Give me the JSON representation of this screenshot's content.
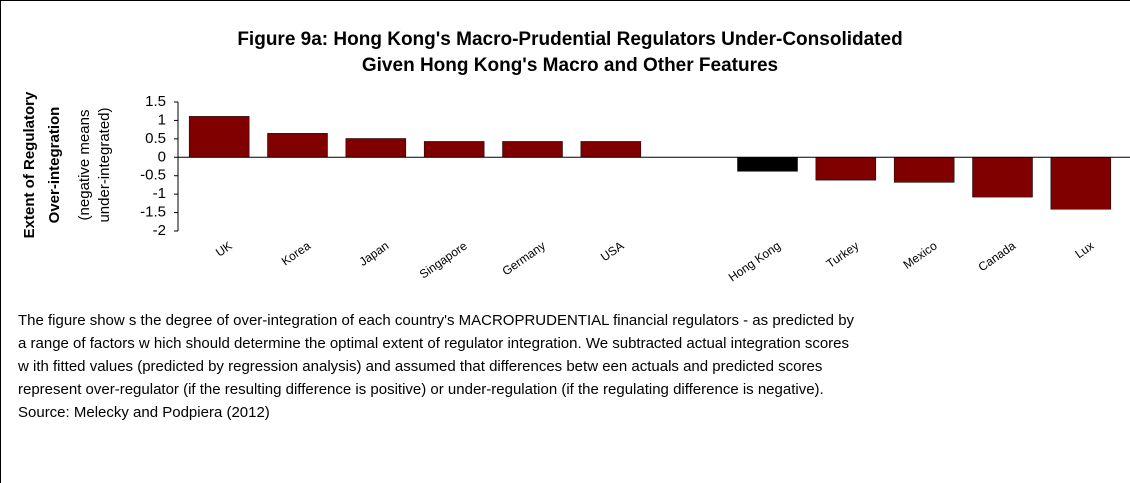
{
  "chart_data": {
    "type": "bar",
    "title": [
      "Figure 9a: Hong Kong's Macro-Prudential Regulators Under-Consolidated",
      "Given Hong Kong's Macro and Other Features"
    ],
    "y_label": [
      "Extent of Regulatory",
      "Over-integration",
      "(negative means",
      "under-integrated)"
    ],
    "categories": [
      "UK",
      "Korea",
      "Japan",
      "Singapore",
      "Germany",
      "USA",
      null,
      "Hong Kong",
      "Turkey",
      "Mexico",
      "Canada",
      "Lux"
    ],
    "values": [
      1.11,
      0.65,
      0.51,
      0.43,
      0.43,
      0.43,
      null,
      -0.38,
      -0.62,
      -0.68,
      -1.08,
      -1.41
    ],
    "colors": [
      "#800000",
      "#800000",
      "#800000",
      "#800000",
      "#800000",
      "#800000",
      null,
      "#000000",
      "#800000",
      "#800000",
      "#800000",
      "#800000"
    ],
    "ylim": [
      -2,
      1.5
    ],
    "yticks": [
      1.5,
      1,
      0.5,
      0,
      -0.5,
      -1,
      -1.5,
      -2
    ],
    "caption": [
      "The figure show s the degree of over-integration of each country's MACROPRUDENTIAL financial regulators - as predicted by",
      "a range of factors w hich should determine the optimal extent of regulator integration. We subtracted actual integration scores",
      "w ith fitted values (predicted by regression analysis) and assumed that differences betw een actuals and predicted scores",
      "represent over-regulator (if the resulting difference is positive) or under-regulation (if the regulating difference is negative).",
      "Source: Melecky and Podpiera (2012)"
    ]
  }
}
